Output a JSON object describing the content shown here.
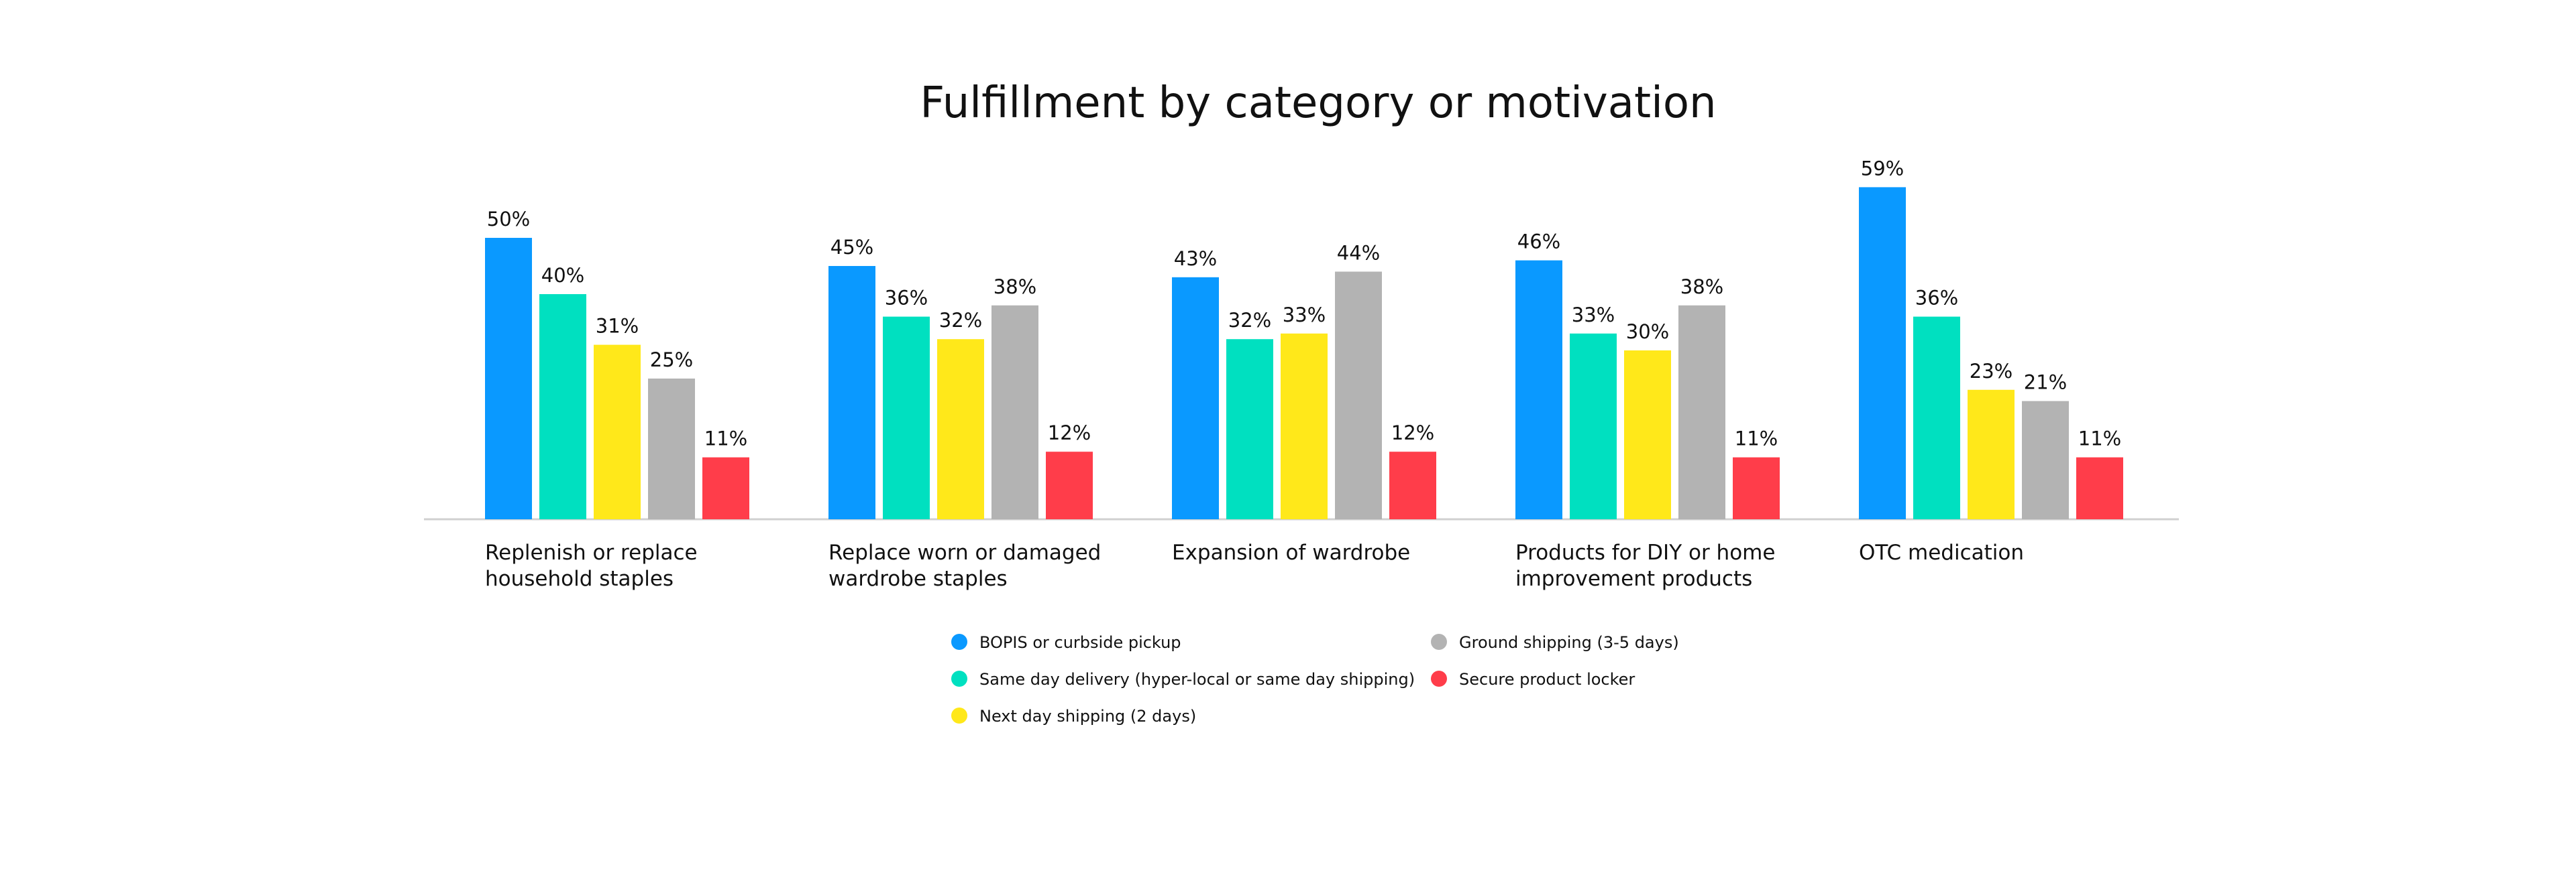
{
  "chart_data": {
    "type": "bar",
    "title": "Fulfillment by category or motivation",
    "categories": [
      [
        "Replenish or replace",
        "household staples"
      ],
      [
        "Replace worn or damaged",
        "wardrobe staples"
      ],
      [
        "Expansion of wardrobe"
      ],
      [
        "Products for DIY or home",
        "improvement products"
      ],
      [
        "OTC medication"
      ]
    ],
    "series": [
      {
        "name": "BOPIS or curbside pickup",
        "color": "#0a99ff",
        "values": [
          50,
          45,
          43,
          46,
          59
        ]
      },
      {
        "name": "Same day delivery (hyper-local or same day shipping)",
        "color": "#00e0c0",
        "values": [
          40,
          36,
          32,
          33,
          36
        ]
      },
      {
        "name": "Next day shipping (2 days)",
        "color": "#ffe81a",
        "values": [
          31,
          32,
          33,
          30,
          23
        ]
      },
      {
        "name": "Ground shipping (3-5 days)",
        "color": "#b3b3b3",
        "values": [
          25,
          38,
          44,
          38,
          21
        ]
      },
      {
        "name": "Secure product locker",
        "color": "#ff3d4a",
        "values": [
          11,
          12,
          12,
          11,
          11
        ]
      }
    ],
    "value_suffix": "%",
    "ylim": [
      0,
      60
    ],
    "grid": false,
    "legend_position": "bottom"
  }
}
